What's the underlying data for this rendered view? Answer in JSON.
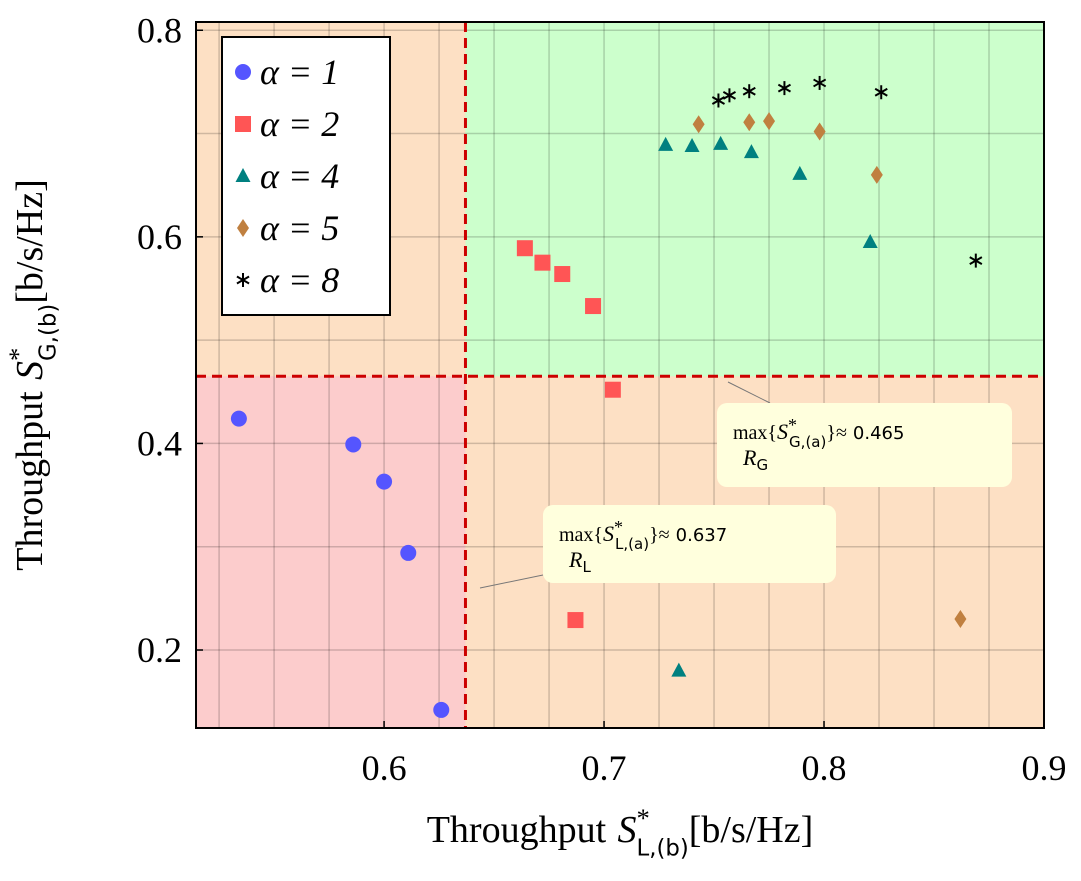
{
  "chart_data": {
    "type": "scatter",
    "xlabel": {
      "text": "Throughput",
      "var": "S",
      "sup": "*",
      "sub": "L,(b)",
      "unit": "[b/s/Hz]"
    },
    "ylabel": {
      "text": "Throughput",
      "var": "S",
      "sup": "*",
      "sub": "G,(b)",
      "unit": "[b/s/Hz]"
    },
    "xlim": [
      0.5145,
      0.9
    ],
    "ylim": [
      0.1245,
      0.808
    ],
    "xticks": [
      0.6,
      0.7,
      0.8,
      0.9
    ],
    "yticks": [
      0.2,
      0.4,
      0.6,
      0.8
    ],
    "grid": true,
    "legend": "upper left",
    "annotations": {
      "y": {
        "func": "max{",
        "var": "S",
        "sup": "*",
        "sub": "G,(a)",
        "close": "}≈",
        "value": 0.465,
        "under": "R",
        "under_sub": "G"
      },
      "x": {
        "func": "max{",
        "var": "S",
        "sup": "*",
        "sub": "L,(a)",
        "close": "}≈",
        "value": 0.637,
        "under": "R",
        "under_sub": "L"
      }
    },
    "series": [
      {
        "name": "α = 1",
        "color": "#5555ff",
        "marker": "circle",
        "x": [
          0.534,
          0.586,
          0.6,
          0.611,
          0.626
        ],
        "values": [
          0.424,
          0.399,
          0.363,
          0.294,
          0.142
        ]
      },
      {
        "name": "α = 2",
        "color": "#ff5555",
        "marker": "square",
        "x": [
          0.664,
          0.672,
          0.681,
          0.695,
          0.704,
          0.687
        ],
        "values": [
          0.589,
          0.575,
          0.564,
          0.533,
          0.452,
          0.229
        ]
      },
      {
        "name": "α = 4",
        "color": "#008080",
        "marker": "triangle",
        "x": [
          0.728,
          0.74,
          0.753,
          0.767,
          0.789,
          0.821,
          0.734
        ],
        "values": [
          0.689,
          0.688,
          0.69,
          0.682,
          0.661,
          0.595,
          0.18
        ]
      },
      {
        "name": "α = 5",
        "color": "#c08040",
        "marker": "diamond",
        "x": [
          0.743,
          0.766,
          0.775,
          0.798,
          0.824,
          0.862
        ],
        "values": [
          0.709,
          0.711,
          0.712,
          0.702,
          0.66,
          0.23
        ]
      },
      {
        "name": "α = 8",
        "color": "#000000",
        "marker": "asterisk",
        "x": [
          0.752,
          0.757,
          0.766,
          0.782,
          0.798,
          0.826,
          0.869
        ],
        "values": [
          0.732,
          0.737,
          0.741,
          0.744,
          0.749,
          0.74,
          0.577
        ]
      }
    ]
  }
}
